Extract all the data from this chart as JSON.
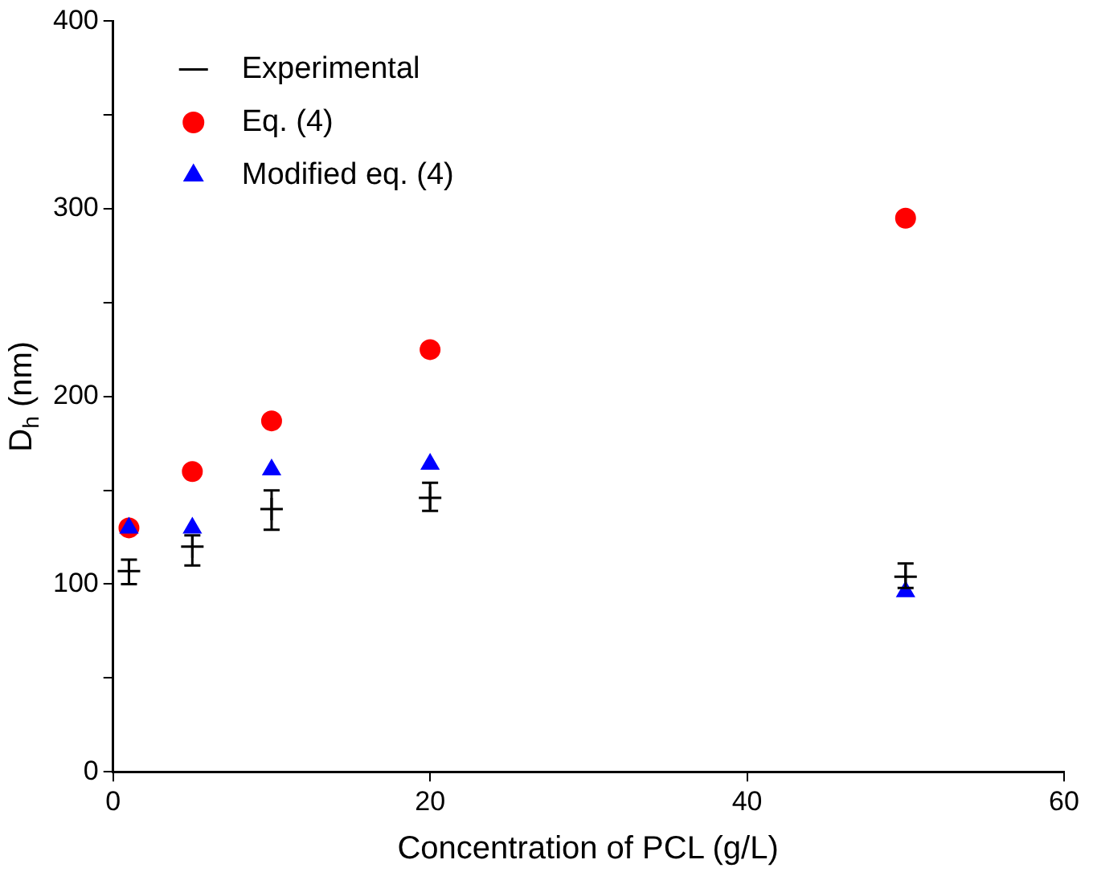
{
  "chart_data": {
    "type": "scatter",
    "xlabel": "Concentration of PCL (g/L)",
    "ylabel": "D$_{h}$ (nm)",
    "x": [
      1,
      5,
      10,
      20,
      50
    ],
    "xlim": [
      0,
      60
    ],
    "xticks": [
      0,
      20,
      40,
      60
    ],
    "ylim": [
      0,
      400
    ],
    "yticks": [
      0,
      {
        "value": 50,
        "label": null
      },
      100,
      {
        "value": 150,
        "label": null
      },
      200,
      {
        "value": 250,
        "label": null
      },
      300,
      {
        "value": 350,
        "label": null
      },
      400
    ],
    "grid": false,
    "legend": "top left",
    "series": [
      {
        "name": "Experimental",
        "color": "#000000",
        "marker": "cross",
        "values": [
          107,
          120,
          140,
          146,
          104
        ],
        "errors": [
          [
            100,
            113
          ],
          [
            110,
            126
          ],
          [
            129,
            150
          ],
          [
            139,
            154
          ],
          [
            98,
            111
          ]
        ]
      },
      {
        "name": "Eq. (4)",
        "color": "#ff0000",
        "marker": "circle",
        "values": [
          130,
          160,
          187,
          225,
          295
        ]
      },
      {
        "name": "Modified eq. (4)",
        "color": "#0000ff",
        "marker": "triangle",
        "values": [
          130,
          130,
          161,
          164,
          96
        ]
      }
    ]
  }
}
